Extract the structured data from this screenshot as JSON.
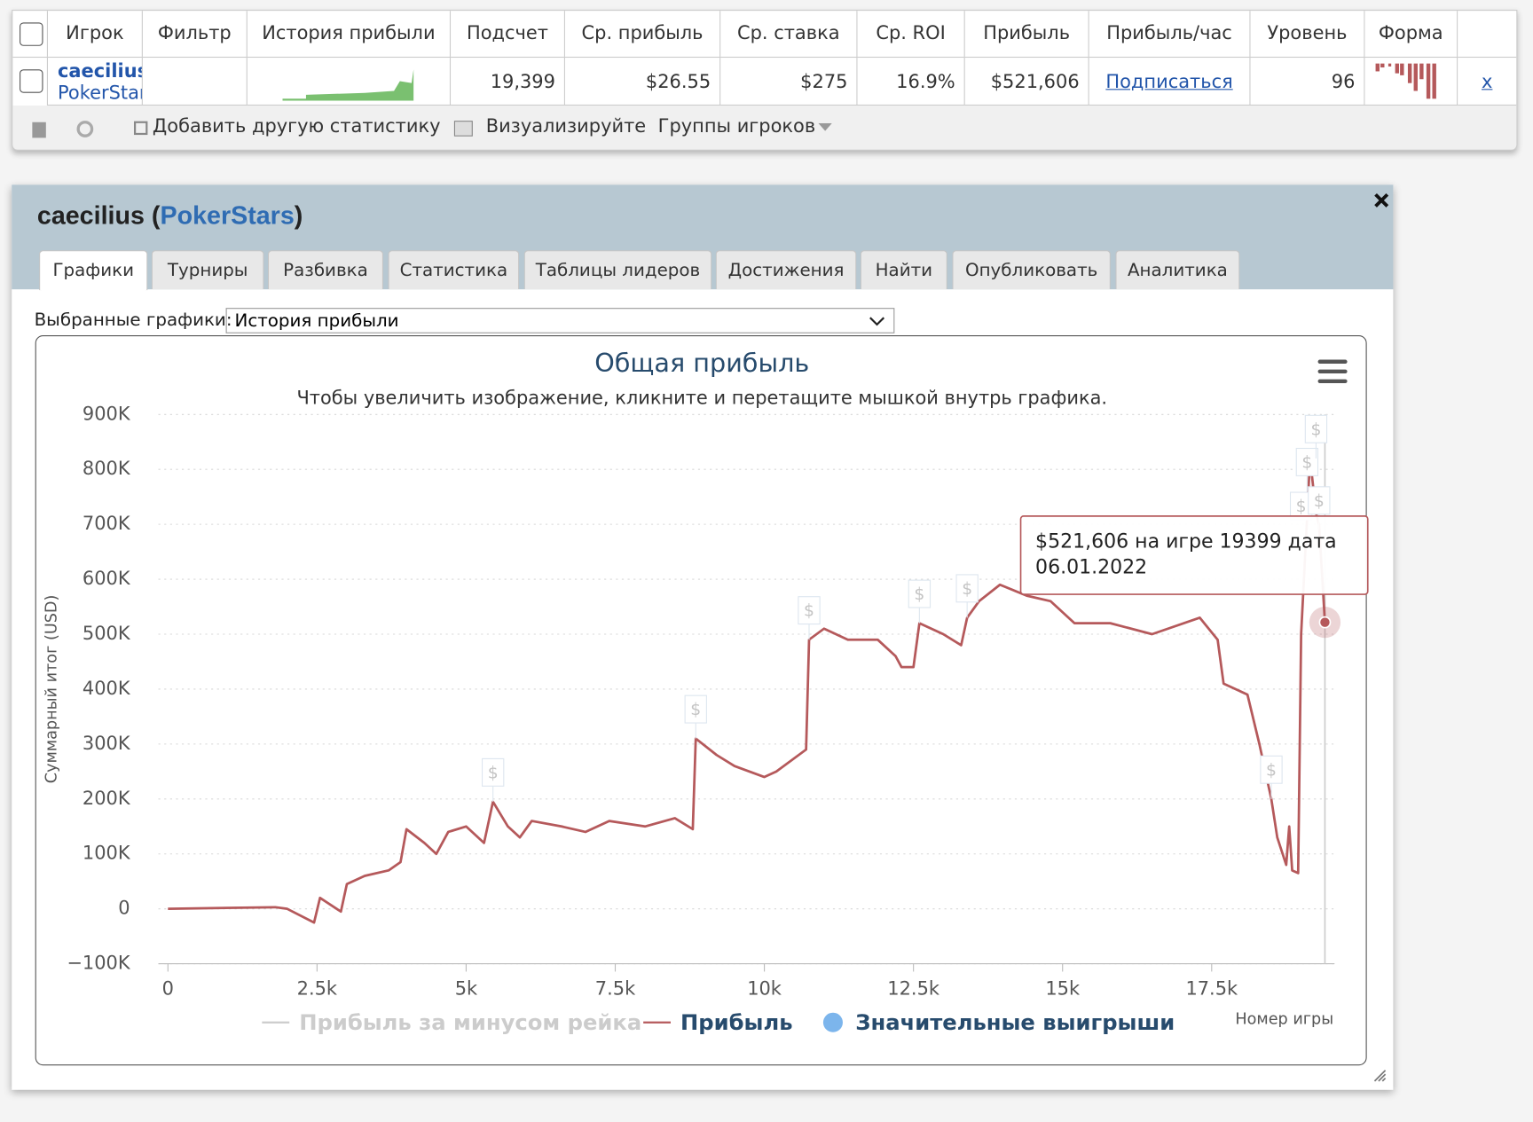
{
  "table": {
    "headers": [
      "Игрок",
      "Фильтр",
      "История прибыли",
      "Подсчет",
      "Ср. прибыль",
      "Ср. ставка",
      "Ср. ROI",
      "Прибыль",
      "Прибыль/час",
      "Уровень",
      "Форма"
    ],
    "row": {
      "player": "caecilius",
      "site": "PokerStars",
      "cells": [
        "19,399",
        "$26.55",
        "$275",
        "16.9%",
        "$521,606",
        "Подписаться",
        "96"
      ],
      "remove": "x"
    }
  },
  "toolbar": [
    "Добавить другую статистику",
    "Визуализируйте",
    "Группы игроков"
  ],
  "panel": {
    "title_parts": [
      "caecilius",
      " (",
      "PokerStars",
      ")"
    ],
    "tabs": [
      "Графики",
      "Турниры",
      "Разбивка",
      "Статистика",
      "Таблицы лидеров",
      "Достижения",
      "Найти",
      "Опубликовать",
      "Аналитика"
    ],
    "select_label": "Выбранные графики:",
    "select_value": "История прибыли"
  },
  "chart_data": {
    "type": "line",
    "title": "Общая прибыль",
    "subtitle": "Чтобы увеличить изображение, кликните и перетащите мышкой внутрь графика.",
    "y_label": "Суммарный итог (USD)",
    "x_label": "Номер игры",
    "xlim": [
      -160,
      19560
    ],
    "ylim": [
      -100000,
      900000
    ],
    "xticks": [
      0,
      {
        "value": 2500,
        "label": "2.5k"
      },
      {
        "value": 5000,
        "label": "5k"
      },
      {
        "value": 7500,
        "label": "7.5k"
      },
      {
        "value": 10000,
        "label": "10k"
      },
      {
        "value": 12500,
        "label": "12.5k"
      },
      {
        "value": 15000,
        "label": "15k"
      },
      {
        "value": 17500,
        "label": "17.5k"
      }
    ],
    "yticks": [
      {
        "value": -100000,
        "label": "−100K"
      },
      0,
      {
        "value": 100000,
        "label": "100K"
      },
      {
        "value": 200000,
        "label": "200K"
      },
      {
        "value": 300000,
        "label": "300K"
      },
      {
        "value": 400000,
        "label": "400K"
      },
      {
        "value": 500000,
        "label": "500K"
      },
      {
        "value": 600000,
        "label": "600K"
      },
      {
        "value": 700000,
        "label": "700K"
      },
      {
        "value": 800000,
        "label": "800K"
      },
      {
        "value": 900000,
        "label": "900K"
      }
    ],
    "grid": true,
    "series": [
      {
        "name": "Прибыль за минусом рейка",
        "color": "#cccccc",
        "hidden": true
      },
      {
        "name": "Прибыль",
        "color": "#b5595b",
        "x": [
          0,
          1800,
          2000,
          2450,
          2550,
          2900,
          3000,
          3300,
          3700,
          3900,
          4000,
          4300,
          4500,
          4700,
          5000,
          5300,
          5450,
          5700,
          5900,
          6100,
          6600,
          7000,
          7400,
          8000,
          8500,
          8800,
          8850,
          9200,
          9500,
          10000,
          10200,
          10700,
          10750,
          11000,
          11400,
          11900,
          12200,
          12300,
          12500,
          12600,
          13000,
          13300,
          13400,
          13600,
          13950,
          14400,
          14800,
          15200,
          15800,
          16500,
          17300,
          17600,
          17700,
          18100,
          18300,
          18500,
          18600,
          18750,
          18800,
          18850,
          18950,
          19000,
          19150,
          19250,
          19300,
          19399
        ],
        "values": [
          0,
          3000,
          0,
          -25000,
          20000,
          -5000,
          45000,
          60000,
          70000,
          85000,
          145000,
          120000,
          100000,
          140000,
          150000,
          120000,
          195000,
          150000,
          130000,
          160000,
          150000,
          140000,
          160000,
          150000,
          165000,
          145000,
          310000,
          280000,
          260000,
          240000,
          250000,
          290000,
          490000,
          510000,
          490000,
          490000,
          460000,
          440000,
          440000,
          520000,
          500000,
          480000,
          530000,
          560000,
          590000,
          570000,
          560000,
          520000,
          520000,
          500000,
          530000,
          490000,
          410000,
          390000,
          300000,
          200000,
          130000,
          80000,
          150000,
          70000,
          65000,
          500000,
          820000,
          720000,
          700000,
          521606
        ]
      },
      {
        "name": "Значительные выигрыши",
        "color": "#7cb5ec",
        "label": "$",
        "x": [
          5450,
          8850,
          10750,
          12600,
          13400,
          18500,
          19000,
          19100,
          19250,
          19300
        ],
        "values": [
          195000,
          310000,
          490000,
          520000,
          530000,
          200000,
          680000,
          760000,
          820000,
          690000
        ]
      }
    ],
    "tooltip": {
      "lines": [
        "$521,606 на игре 19399 дата",
        "06.01.2022"
      ],
      "series": 1,
      "index": 65
    }
  }
}
